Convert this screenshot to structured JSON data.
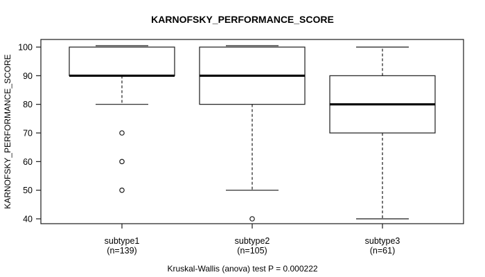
{
  "title": "KARNOFSKY_PERFORMANCE_SCORE",
  "caption": "Kruskal-Wallis (anova) test P = 0.000222",
  "y_axis": {
    "label": "KARNOFSKY_PERFORMANCE_SCORE",
    "ticks": [
      40,
      50,
      60,
      70,
      80,
      90,
      100
    ]
  },
  "colors": {
    "line": "#1a1a1a",
    "median": "#000000",
    "background": "#ffffff"
  },
  "chart_data": {
    "type": "boxplot",
    "title": "KARNOFSKY_PERFORMANCE_SCORE",
    "ylabel": "KARNOFSKY_PERFORMANCE_SCORE",
    "footnote": "Kruskal-Wallis (anova) test P = 0.000222",
    "ylim": [
      40,
      100
    ],
    "yticks": [
      40,
      50,
      60,
      70,
      80,
      90,
      100
    ],
    "grid": false,
    "legend": "none",
    "groups": [
      {
        "label": "subtype1",
        "n_label": "(n=139)",
        "n": 139,
        "whisker_low": 80,
        "q1": 90,
        "median": 90,
        "q3": 100,
        "whisker_high": 100,
        "outliers": [
          70,
          60,
          50
        ]
      },
      {
        "label": "subtype2",
        "n_label": "(n=105)",
        "n": 105,
        "whisker_low": 50,
        "q1": 80,
        "median": 90,
        "q3": 100,
        "whisker_high": 100,
        "outliers": [
          40
        ]
      },
      {
        "label": "subtype3",
        "n_label": "(n=61)",
        "n": 61,
        "whisker_low": 40,
        "q1": 70,
        "median": 80,
        "q3": 90,
        "whisker_high": 100,
        "outliers": []
      }
    ]
  }
}
